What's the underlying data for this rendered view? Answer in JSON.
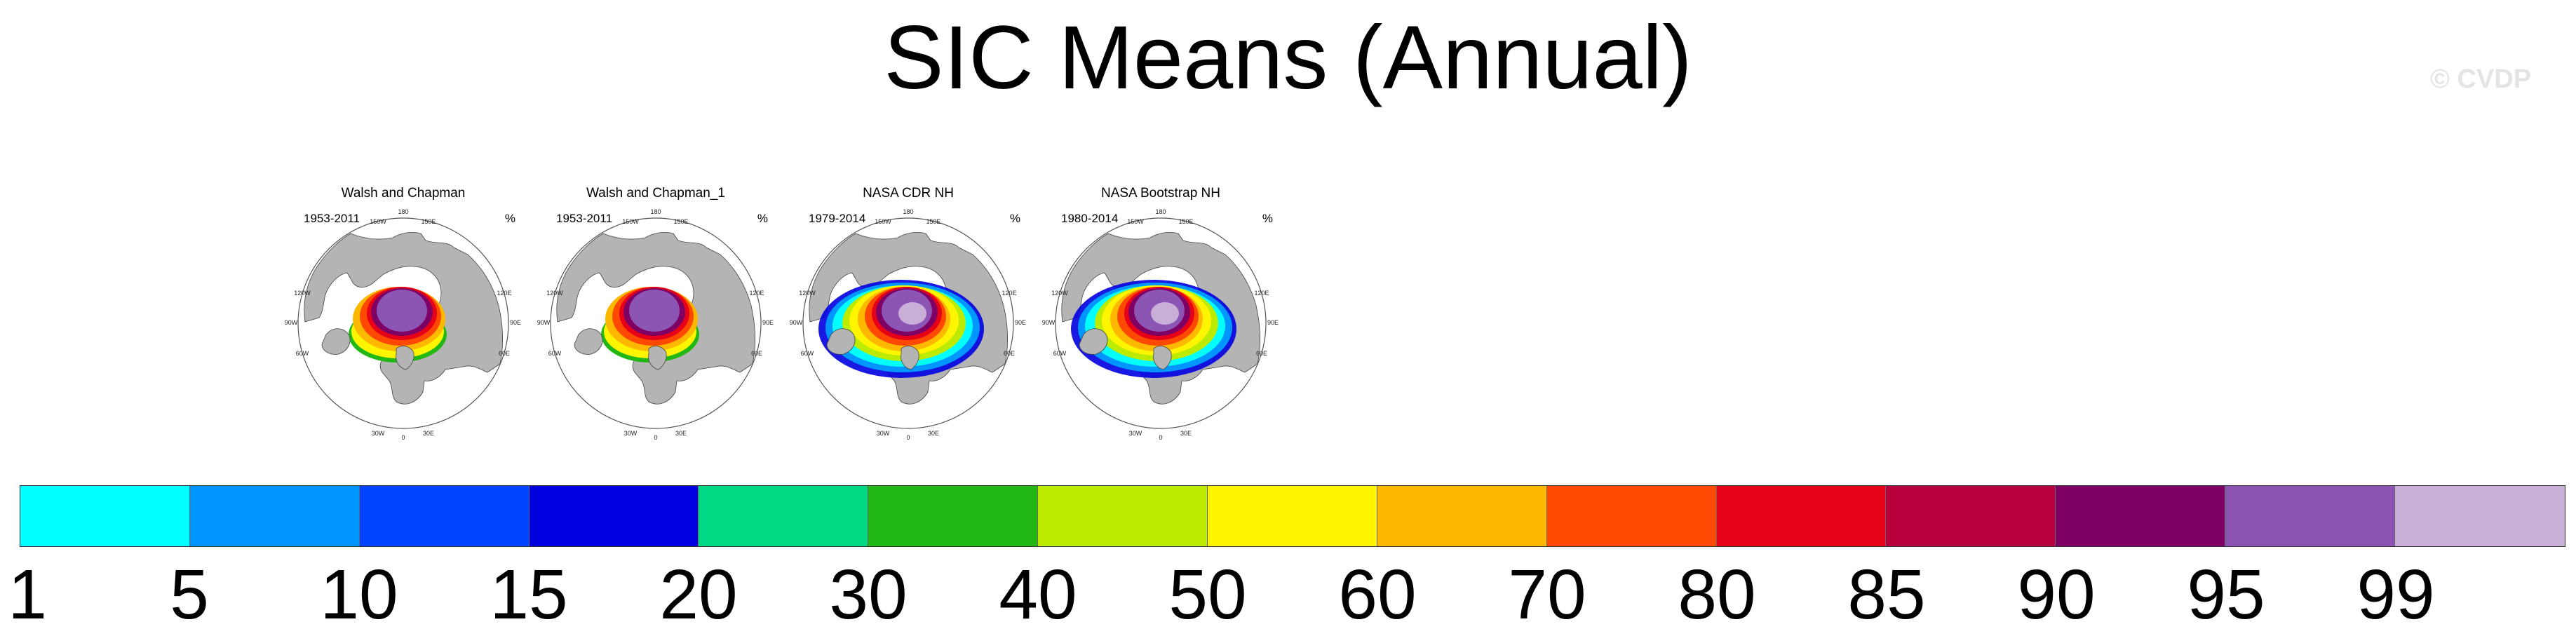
{
  "figure": {
    "title": "SIC Means (Annual)",
    "watermark": "© CVDP"
  },
  "panels": [
    {
      "title": "Walsh and Chapman",
      "period": "1953-2011",
      "unit": "%",
      "style": "walsh"
    },
    {
      "title": "Walsh and Chapman_1",
      "period": "1953-2011",
      "unit": "%",
      "style": "walsh"
    },
    {
      "title": "NASA CDR NH",
      "period": "1979-2014",
      "unit": "%",
      "style": "nasa"
    },
    {
      "title": "NASA Bootstrap NH",
      "period": "1980-2014",
      "unit": "%",
      "style": "nasa"
    }
  ],
  "map_labels": [
    "180",
    "150E",
    "150W",
    "120E",
    "120W",
    "90E",
    "90W",
    "60E",
    "60W",
    "30E",
    "30W",
    "0"
  ],
  "colorbar": {
    "colors": [
      "#00ffff",
      "#0096ff",
      "#0044ff",
      "#0000e0",
      "#00d884",
      "#22b814",
      "#bceb00",
      "#fff500",
      "#ffb800",
      "#ff4800",
      "#e60018",
      "#b8003c",
      "#7e0064",
      "#8c55b4",
      "#c9afd8"
    ],
    "labels": [
      "1",
      "5",
      "10",
      "15",
      "20",
      "30",
      "40",
      "50",
      "60",
      "70",
      "80",
      "85",
      "90",
      "95",
      "99"
    ]
  }
}
